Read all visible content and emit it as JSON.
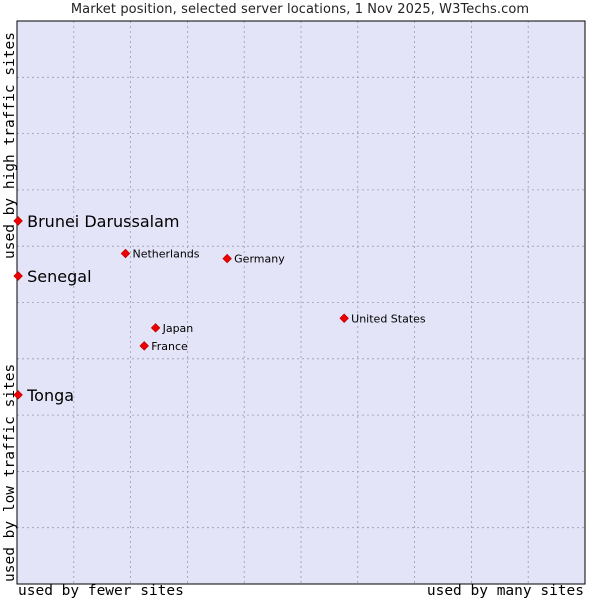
{
  "chart_data": {
    "type": "scatter",
    "title": "Market position, selected server locations, 1 Nov 2025, W3Techs.com",
    "xlabel_left": "used by fewer sites",
    "xlabel_right": "used by many sites",
    "ylabel_bottom": "used by low traffic sites",
    "ylabel_top": "used by high traffic sites",
    "xlim": [
      0,
      100
    ],
    "ylim": [
      0,
      100
    ],
    "grid": true,
    "colors": {
      "plot_bg": "#e4e4f8",
      "grid": "#9a9ab0",
      "border": "#000000",
      "marker": "#ee0000"
    },
    "points": [
      {
        "label": "Brunei Darussalam",
        "x": 0.2,
        "y": 64.5,
        "highlight": true
      },
      {
        "label": "Senegal",
        "x": 0.2,
        "y": 54.7,
        "highlight": true
      },
      {
        "label": "Tonga",
        "x": 0.2,
        "y": 33.6,
        "highlight": true
      },
      {
        "label": "Netherlands",
        "x": 19.1,
        "y": 58.7,
        "highlight": false
      },
      {
        "label": "Germany",
        "x": 37.0,
        "y": 57.8,
        "highlight": false
      },
      {
        "label": "United States",
        "x": 57.6,
        "y": 47.2,
        "highlight": false
      },
      {
        "label": "Japan",
        "x": 24.4,
        "y": 45.5,
        "highlight": false
      },
      {
        "label": "France",
        "x": 22.4,
        "y": 42.3,
        "highlight": false
      }
    ]
  }
}
